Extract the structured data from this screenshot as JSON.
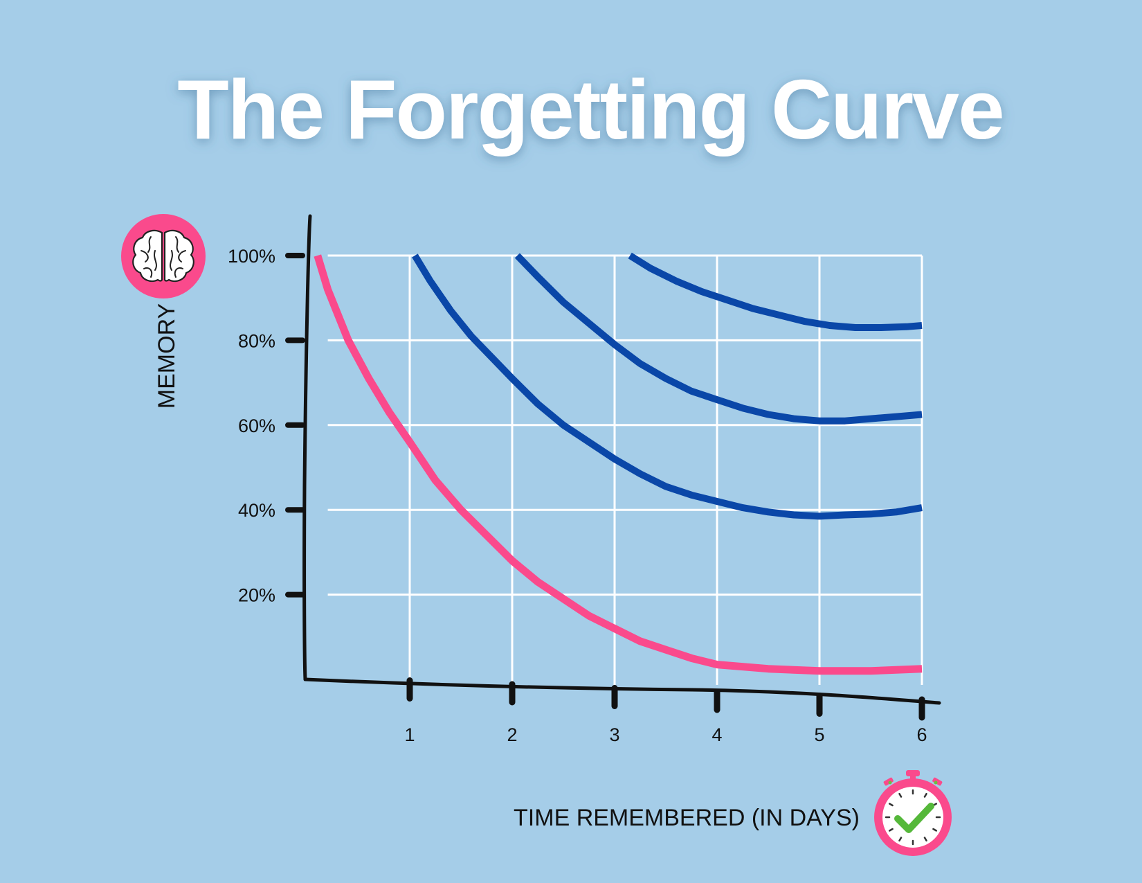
{
  "chart_data": {
    "type": "line",
    "title": "The Forgetting Curve",
    "xlabel": "TIME REMEMBERED (IN DAYS)",
    "ylabel": "MEMORY",
    "x_ticks": [
      "1",
      "2",
      "3",
      "4",
      "5",
      "6"
    ],
    "y_ticks": [
      "100%",
      "80%",
      "60%",
      "40%",
      "20%"
    ],
    "xlim": [
      0,
      6
    ],
    "ylim": [
      0,
      100
    ],
    "grid": true,
    "colors": {
      "background": "#a5cde8",
      "forgetting": "#fa4a8c",
      "review": "#0a47a8",
      "grid": "#ffffff",
      "axis": "#111111"
    },
    "icons": {
      "memory": "brain-icon",
      "time": "stopwatch-check-icon"
    },
    "series": [
      {
        "color": "#fa4a8c",
        "points": [
          [
            0.1,
            100
          ],
          [
            0.2,
            92
          ],
          [
            0.4,
            80
          ],
          [
            0.6,
            71
          ],
          [
            0.8,
            63
          ],
          [
            1.0,
            56
          ],
          [
            1.25,
            47
          ],
          [
            1.5,
            40
          ],
          [
            1.75,
            34
          ],
          [
            2.0,
            28
          ],
          [
            2.25,
            23
          ],
          [
            2.5,
            19
          ],
          [
            2.75,
            15
          ],
          [
            3.0,
            12
          ],
          [
            3.25,
            9
          ],
          [
            3.5,
            7
          ],
          [
            3.75,
            5
          ],
          [
            4.0,
            3.5
          ],
          [
            4.5,
            2.5
          ],
          [
            5.0,
            2
          ],
          [
            5.5,
            2
          ],
          [
            6.0,
            2.5
          ]
        ]
      },
      {
        "color": "#0a47a8",
        "points": [
          [
            1.05,
            100
          ],
          [
            1.2,
            94
          ],
          [
            1.4,
            87
          ],
          [
            1.6,
            81
          ],
          [
            1.8,
            76
          ],
          [
            2.0,
            71
          ],
          [
            2.25,
            65
          ],
          [
            2.5,
            60
          ],
          [
            2.75,
            56
          ],
          [
            3.0,
            52
          ],
          [
            3.25,
            48.5
          ],
          [
            3.5,
            45.5
          ],
          [
            3.75,
            43.5
          ],
          [
            4.0,
            42
          ],
          [
            4.25,
            40.5
          ],
          [
            4.5,
            39.5
          ],
          [
            4.75,
            38.8
          ],
          [
            5.0,
            38.5
          ],
          [
            5.25,
            38.8
          ],
          [
            5.5,
            39
          ],
          [
            5.75,
            39.5
          ],
          [
            6.0,
            40.5
          ]
        ]
      },
      {
        "color": "#0a47a8",
        "points": [
          [
            2.05,
            100
          ],
          [
            2.25,
            95
          ],
          [
            2.5,
            89
          ],
          [
            2.75,
            84
          ],
          [
            3.0,
            79
          ],
          [
            3.25,
            74.5
          ],
          [
            3.5,
            71
          ],
          [
            3.75,
            68
          ],
          [
            4.0,
            66
          ],
          [
            4.25,
            64
          ],
          [
            4.5,
            62.5
          ],
          [
            4.75,
            61.5
          ],
          [
            5.0,
            61
          ],
          [
            5.25,
            61
          ],
          [
            5.5,
            61.5
          ],
          [
            5.75,
            62
          ],
          [
            6.0,
            62.5
          ]
        ]
      },
      {
        "color": "#0a47a8",
        "points": [
          [
            3.15,
            100
          ],
          [
            3.35,
            97
          ],
          [
            3.6,
            94
          ],
          [
            3.85,
            91.5
          ],
          [
            4.1,
            89.5
          ],
          [
            4.35,
            87.5
          ],
          [
            4.6,
            86
          ],
          [
            4.85,
            84.5
          ],
          [
            5.1,
            83.5
          ],
          [
            5.35,
            83
          ],
          [
            5.6,
            83
          ],
          [
            5.85,
            83.2
          ],
          [
            6.0,
            83.5
          ]
        ]
      }
    ]
  }
}
